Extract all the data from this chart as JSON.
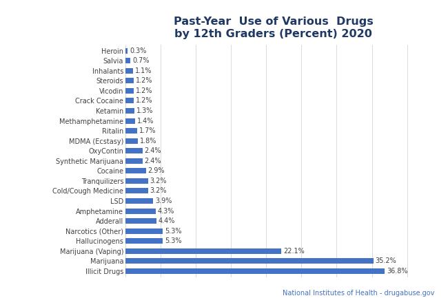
{
  "title": "Past-Year  Use of Various  Drugs\nby 12th Graders (Percent) 2020",
  "categories": [
    "Illicit Drugs",
    "Marijuana",
    "Marijuana (Vaping)",
    "Hallucinogens",
    "Narcotics (Other)",
    "Adderall",
    "Amphetamine",
    "LSD",
    "Cold/Cough Medicine",
    "Tranquilizers",
    "Cocaine",
    "Synthetic Marijuana",
    "OxyContin",
    "MDMA (Ecstasy)",
    "Ritalin",
    "Methamphetamine",
    "Ketamin",
    "Crack Cocaine",
    "Vicodin",
    "Steroids",
    "Inhalants",
    "Salvia",
    "Heroin"
  ],
  "values": [
    36.8,
    35.2,
    22.1,
    5.3,
    5.3,
    4.4,
    4.3,
    3.9,
    3.2,
    3.2,
    2.9,
    2.4,
    2.4,
    1.8,
    1.7,
    1.4,
    1.3,
    1.2,
    1.2,
    1.2,
    1.1,
    0.7,
    0.3
  ],
  "bar_color": "#4472C4",
  "background_color": "#FFFFFF",
  "title_color": "#1F3864",
  "label_color": "#404040",
  "value_color": "#404040",
  "source_text": "National Institutes of Health - drugabuse.gov",
  "source_color": "#4472C4",
  "xlim": [
    0,
    42
  ],
  "grid_ticks": [
    0,
    5,
    10,
    15,
    20,
    25,
    30,
    35,
    40
  ],
  "title_fontsize": 11.5,
  "label_fontsize": 7,
  "value_fontsize": 7
}
